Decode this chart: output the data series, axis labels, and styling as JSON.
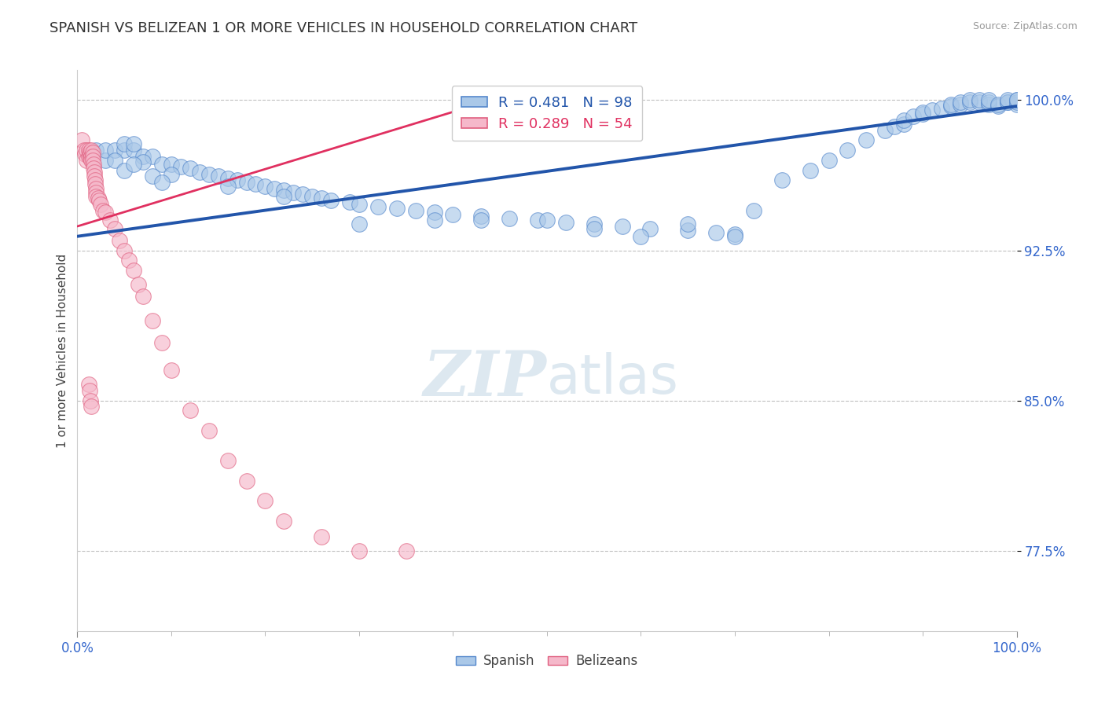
{
  "title": "SPANISH VS BELIZEAN 1 OR MORE VEHICLES IN HOUSEHOLD CORRELATION CHART",
  "source": "Source: ZipAtlas.com",
  "ylabel": "1 or more Vehicles in Household",
  "ytick_labels": [
    "77.5%",
    "85.0%",
    "92.5%",
    "100.0%"
  ],
  "ytick_values": [
    0.775,
    0.85,
    0.925,
    1.0
  ],
  "xlim": [
    0.0,
    1.0
  ],
  "ylim": [
    0.735,
    1.015
  ],
  "legend_blue_r": "R = 0.481",
  "legend_blue_n": "N = 98",
  "legend_pink_r": "R = 0.289",
  "legend_pink_n": "N = 54",
  "blue_color": "#aac8e8",
  "pink_color": "#f5b8ca",
  "blue_edge_color": "#5588cc",
  "pink_edge_color": "#e06080",
  "blue_line_color": "#2255aa",
  "pink_line_color": "#e03060",
  "background_color": "#ffffff",
  "blue_line_x0": 0.0,
  "blue_line_y0": 0.932,
  "blue_line_x1": 1.0,
  "blue_line_y1": 0.997,
  "pink_line_x0": 0.0,
  "pink_line_y0": 0.937,
  "pink_line_x1": 0.42,
  "pink_line_y1": 0.997,
  "spanish_x": [
    0.02,
    0.03,
    0.03,
    0.04,
    0.05,
    0.05,
    0.06,
    0.06,
    0.07,
    0.08,
    0.09,
    0.1,
    0.11,
    0.12,
    0.13,
    0.14,
    0.15,
    0.16,
    0.17,
    0.18,
    0.19,
    0.2,
    0.21,
    0.22,
    0.23,
    0.24,
    0.25,
    0.26,
    0.27,
    0.29,
    0.3,
    0.32,
    0.34,
    0.36,
    0.38,
    0.4,
    0.43,
    0.46,
    0.49,
    0.52,
    0.55,
    0.58,
    0.61,
    0.65,
    0.68,
    0.7,
    0.72,
    0.75,
    0.78,
    0.8,
    0.82,
    0.84,
    0.86,
    0.87,
    0.88,
    0.88,
    0.89,
    0.9,
    0.9,
    0.91,
    0.92,
    0.93,
    0.93,
    0.94,
    0.94,
    0.95,
    0.95,
    0.96,
    0.96,
    0.97,
    0.97,
    0.97,
    0.98,
    0.98,
    0.99,
    0.99,
    0.99,
    1.0,
    1.0,
    1.0,
    1.0,
    0.5,
    0.55,
    0.6,
    0.65,
    0.7,
    0.38,
    0.43,
    0.3,
    0.22,
    0.16,
    0.1,
    0.07,
    0.04,
    0.05,
    0.06,
    0.08,
    0.09
  ],
  "spanish_y": [
    0.975,
    0.97,
    0.975,
    0.975,
    0.975,
    0.978,
    0.975,
    0.978,
    0.972,
    0.972,
    0.968,
    0.968,
    0.967,
    0.966,
    0.964,
    0.963,
    0.962,
    0.961,
    0.96,
    0.959,
    0.958,
    0.957,
    0.956,
    0.955,
    0.954,
    0.953,
    0.952,
    0.951,
    0.95,
    0.949,
    0.948,
    0.947,
    0.946,
    0.945,
    0.944,
    0.943,
    0.942,
    0.941,
    0.94,
    0.939,
    0.938,
    0.937,
    0.936,
    0.935,
    0.934,
    0.933,
    0.945,
    0.96,
    0.965,
    0.97,
    0.975,
    0.98,
    0.985,
    0.987,
    0.988,
    0.99,
    0.992,
    0.993,
    0.994,
    0.995,
    0.996,
    0.997,
    0.998,
    0.998,
    0.999,
    0.999,
    1.0,
    0.999,
    1.0,
    0.998,
    0.999,
    1.0,
    0.997,
    0.998,
    0.999,
    0.999,
    1.0,
    0.998,
    0.999,
    1.0,
    1.0,
    0.94,
    0.936,
    0.932,
    0.938,
    0.932,
    0.94,
    0.94,
    0.938,
    0.952,
    0.957,
    0.963,
    0.969,
    0.97,
    0.965,
    0.968,
    0.962,
    0.959
  ],
  "belizean_x": [
    0.005,
    0.007,
    0.008,
    0.01,
    0.01,
    0.012,
    0.012,
    0.013,
    0.014,
    0.014,
    0.015,
    0.015,
    0.015,
    0.016,
    0.016,
    0.016,
    0.017,
    0.017,
    0.018,
    0.018,
    0.019,
    0.019,
    0.02,
    0.02,
    0.02,
    0.022,
    0.023,
    0.025,
    0.027,
    0.03,
    0.035,
    0.04,
    0.045,
    0.05,
    0.055,
    0.06,
    0.065,
    0.07,
    0.08,
    0.09,
    0.1,
    0.12,
    0.14,
    0.16,
    0.18,
    0.2,
    0.22,
    0.26,
    0.3,
    0.35,
    0.012,
    0.013,
    0.014,
    0.015
  ],
  "belizean_y": [
    0.98,
    0.975,
    0.973,
    0.975,
    0.97,
    0.975,
    0.972,
    0.974,
    0.973,
    0.971,
    0.975,
    0.972,
    0.97,
    0.974,
    0.972,
    0.97,
    0.968,
    0.966,
    0.964,
    0.962,
    0.96,
    0.958,
    0.956,
    0.954,
    0.952,
    0.951,
    0.95,
    0.948,
    0.945,
    0.944,
    0.94,
    0.936,
    0.93,
    0.925,
    0.92,
    0.915,
    0.908,
    0.902,
    0.89,
    0.879,
    0.865,
    0.845,
    0.835,
    0.82,
    0.81,
    0.8,
    0.79,
    0.782,
    0.775,
    0.775,
    0.858,
    0.855,
    0.85,
    0.847
  ]
}
